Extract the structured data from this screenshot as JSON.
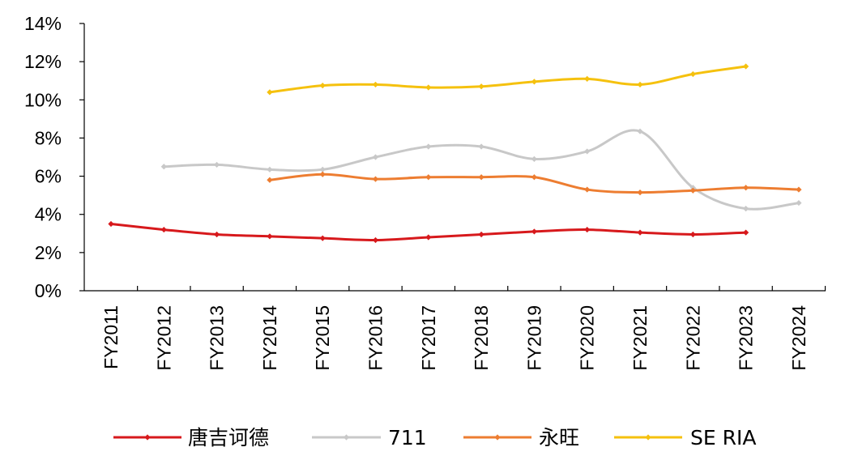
{
  "chart_data": {
    "type": "line",
    "categories": [
      "FY2011",
      "FY2012",
      "FY2013",
      "FY2014",
      "FY2015",
      "FY2016",
      "FY2017",
      "FY2018",
      "FY2019",
      "FY2020",
      "FY2021",
      "FY2022",
      "FY2023",
      "FY2024"
    ],
    "y_ticks": [
      "0%",
      "2%",
      "4%",
      "6%",
      "8%",
      "10%",
      "12%",
      "14%"
    ],
    "ylim": [
      0,
      14
    ],
    "legend_position": "bottom",
    "grid": false,
    "series": [
      {
        "name": "唐吉诃德",
        "color": "#d7191c",
        "values": [
          3.5,
          3.2,
          2.95,
          2.85,
          2.75,
          2.65,
          2.8,
          2.95,
          3.1,
          3.2,
          3.05,
          2.95,
          3.05,
          null
        ]
      },
      {
        "name": "711",
        "color": "#c8c8c8",
        "values": [
          null,
          6.5,
          6.6,
          6.35,
          6.35,
          7.0,
          7.55,
          7.55,
          6.9,
          7.3,
          8.35,
          5.4,
          4.3,
          4.6
        ]
      },
      {
        "name": "永旺",
        "color": "#ed7d31",
        "values": [
          null,
          null,
          null,
          5.8,
          6.1,
          5.85,
          5.95,
          5.95,
          5.95,
          5.3,
          5.15,
          5.25,
          5.4,
          5.3
        ]
      },
      {
        "name": "SE RIA",
        "color": "#f5c10e",
        "values": [
          null,
          null,
          null,
          10.4,
          10.75,
          10.8,
          10.65,
          10.7,
          10.95,
          11.1,
          10.8,
          11.35,
          11.75,
          null
        ]
      }
    ]
  }
}
